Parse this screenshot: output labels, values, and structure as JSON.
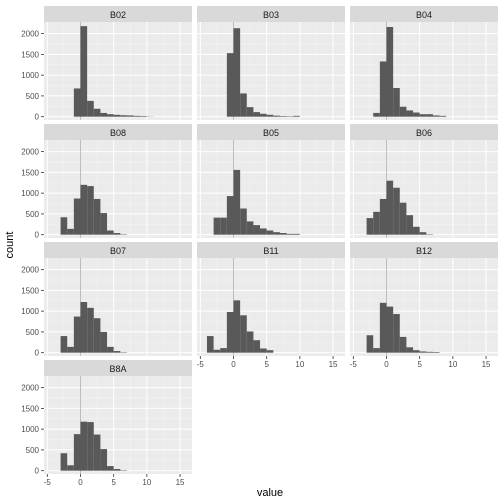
{
  "chart_data": {
    "type": "bar",
    "subtype": "faceted-histogram",
    "xlabel": "value",
    "ylabel": "count",
    "grid": true,
    "xlim": [
      -5.5,
      16.8
    ],
    "ylim": [
      -80,
      2280
    ],
    "x_ticks": [
      -5,
      0,
      5,
      10,
      15
    ],
    "y_ticks": [
      0,
      500,
      1000,
      1500,
      2000
    ],
    "bin_width": 1,
    "reference_line_x": 0,
    "bar_color": "#595959",
    "panel_bg": "#ebebeb",
    "strip_bg": "#d9d9d9",
    "facets": [
      {
        "name": "B02",
        "bins_start": -1,
        "counts": [
          680,
          2180,
          380,
          190,
          90,
          60,
          45,
          35,
          30,
          20,
          15,
          5
        ]
      },
      {
        "name": "B03",
        "bins_start": -1,
        "counts": [
          1530,
          2130,
          560,
          230,
          110,
          70,
          45,
          25,
          15,
          10,
          20
        ]
      },
      {
        "name": "B04",
        "bins_start": -2,
        "counts": [
          90,
          1330,
          2160,
          690,
          240,
          150,
          100,
          60,
          60,
          30,
          20
        ]
      },
      {
        "name": "B08",
        "bins_start": -3,
        "counts": [
          420,
          140,
          870,
          1200,
          1170,
          860,
          520,
          100,
          40,
          10
        ]
      },
      {
        "name": "B05",
        "bins_start": -3,
        "counts": [
          410,
          410,
          930,
          1560,
          630,
          320,
          230,
          150,
          100,
          60,
          40,
          20,
          20
        ]
      },
      {
        "name": "B06",
        "bins_start": -3,
        "counts": [
          400,
          550,
          860,
          1300,
          1130,
          770,
          470,
          190,
          60,
          10
        ]
      },
      {
        "name": "B07",
        "bins_start": -3,
        "counts": [
          400,
          140,
          870,
          1220,
          1080,
          830,
          500,
          140,
          40,
          10
        ]
      },
      {
        "name": "B11",
        "bins_start": -4,
        "counts": [
          400,
          70,
          110,
          980,
          1260,
          900,
          510,
          300,
          100,
          60
        ]
      },
      {
        "name": "B12",
        "bins_start": -3,
        "counts": [
          420,
          110,
          1200,
          1110,
          930,
          380,
          130,
          60,
          30,
          20,
          15
        ]
      },
      {
        "name": "B8A",
        "bins_start": -3,
        "counts": [
          420,
          130,
          880,
          1180,
          1170,
          870,
          520,
          110,
          40,
          10
        ]
      }
    ]
  }
}
